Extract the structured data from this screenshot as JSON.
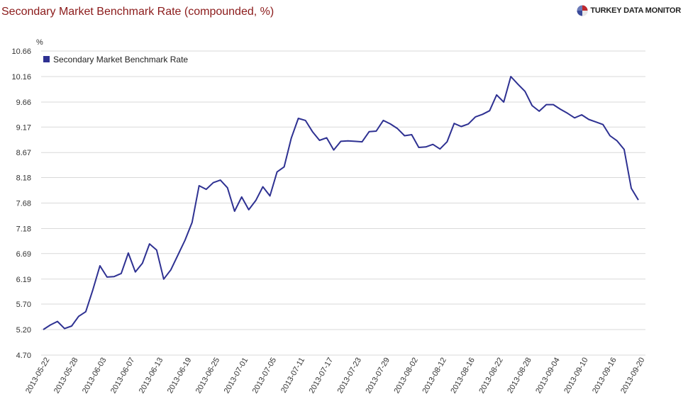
{
  "title": "Secondary Market Benchmark Rate (compounded, %)",
  "brand": {
    "text": "TURKEY DATA MONITOR",
    "logo_icon": "pie-globe-icon"
  },
  "colors": {
    "line": "#2e3192",
    "title": "#8b1a1a",
    "grid": "#d9d9d9"
  },
  "chart_data": {
    "type": "line",
    "title": "Secondary Market Benchmark Rate (compounded, %)",
    "ylabel": "%",
    "xlabel": "",
    "ylim": [
      4.7,
      10.66
    ],
    "yticks": [
      "4.70",
      "5.20",
      "5.70",
      "6.19",
      "6.69",
      "7.18",
      "7.68",
      "8.18",
      "8.67",
      "9.17",
      "9.66",
      "10.16",
      "10.66"
    ],
    "xticks": [
      "2013-05-22",
      "2013-05-28",
      "2013-06-03",
      "2013-06-07",
      "2013-06-13",
      "2013-06-19",
      "2013-06-25",
      "2013-07-01",
      "2013-07-05",
      "2013-07-11",
      "2013-07-17",
      "2013-07-23",
      "2013-07-29",
      "2013-08-02",
      "2013-08-12",
      "2013-08-16",
      "2013-08-22",
      "2013-08-28",
      "2013-09-04",
      "2013-09-10",
      "2013-09-16",
      "2013-09-20"
    ],
    "grid": true,
    "legend_position": "top-left",
    "series": [
      {
        "name": "Secondary Market Benchmark Rate",
        "values": [
          5.2,
          5.29,
          5.36,
          5.22,
          5.27,
          5.46,
          5.55,
          5.98,
          6.45,
          6.23,
          6.24,
          6.3,
          6.7,
          6.33,
          6.5,
          6.88,
          6.76,
          6.19,
          6.37,
          6.66,
          6.95,
          7.3,
          8.02,
          7.95,
          8.08,
          8.13,
          7.98,
          7.52,
          7.8,
          7.55,
          7.73,
          8.0,
          7.82,
          8.29,
          8.39,
          8.95,
          9.34,
          9.3,
          9.08,
          8.91,
          8.96,
          8.72,
          8.89,
          8.9,
          8.89,
          8.88,
          9.08,
          9.09,
          9.3,
          9.23,
          9.14,
          9.0,
          9.02,
          8.77,
          8.78,
          8.83,
          8.74,
          8.88,
          9.24,
          9.18,
          9.23,
          9.37,
          9.42,
          9.49,
          9.8,
          9.66,
          10.16,
          10.01,
          9.87,
          9.59,
          9.48,
          9.61,
          9.61,
          9.52,
          9.44,
          9.35,
          9.41,
          9.32,
          9.27,
          9.22,
          9.0,
          8.9,
          8.73,
          7.97,
          7.74
        ]
      }
    ]
  }
}
